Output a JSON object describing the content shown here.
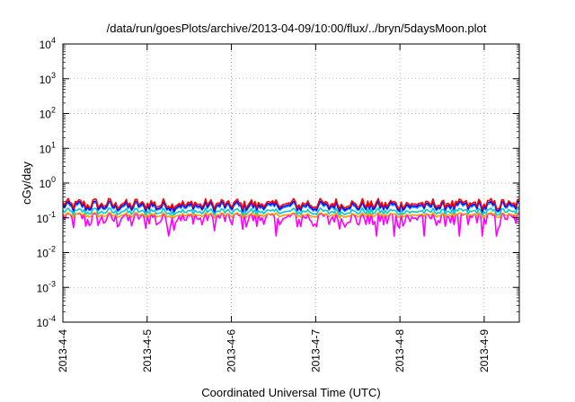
{
  "chart_data": {
    "type": "line",
    "title": "/data/run/goesPlots/archive/2013-04-09/10:00/flux/../bryn/5daysMoon.plot",
    "xlabel": "Coordinated Universal Time (UTC)",
    "ylabel": "cGy/day",
    "y_scale": "log",
    "ylim": [
      0.0001,
      10000
    ],
    "y_ticks": [
      {
        "base": "10",
        "exp": "4"
      },
      {
        "base": "10",
        "exp": "3"
      },
      {
        "base": "10",
        "exp": "2"
      },
      {
        "base": "10",
        "exp": "1"
      },
      {
        "base": "10",
        "exp": "0"
      },
      {
        "base": "10",
        "exp": "-1"
      },
      {
        "base": "10",
        "exp": "-2"
      },
      {
        "base": "10",
        "exp": "-3"
      },
      {
        "base": "10",
        "exp": "-4"
      }
    ],
    "x_ticks": [
      "2013-4-4",
      "2013-4-5",
      "2013-4-6",
      "2013-4-7",
      "2013-4-8",
      "2013-4-9"
    ],
    "xlim": [
      "2013-04-04 00:00",
      "2013-04-09 10:00"
    ],
    "grid": true,
    "series": [
      {
        "color": "#ff0000",
        "typical": 0.25,
        "range": [
          0.18,
          0.36
        ]
      },
      {
        "color": "#0000ff",
        "typical": 0.22,
        "range": [
          0.15,
          0.3
        ]
      },
      {
        "color": "#3399ff",
        "typical": 0.2,
        "range": [
          0.14,
          0.27
        ]
      },
      {
        "color": "#00cccc",
        "typical": 0.15,
        "range": [
          0.12,
          0.19
        ]
      },
      {
        "color": "#ff9900",
        "typical": 0.12,
        "range": [
          0.1,
          0.14
        ]
      },
      {
        "color": "#ff00ff",
        "typical": 0.1,
        "range": [
          0.03,
          0.13
        ]
      }
    ]
  }
}
